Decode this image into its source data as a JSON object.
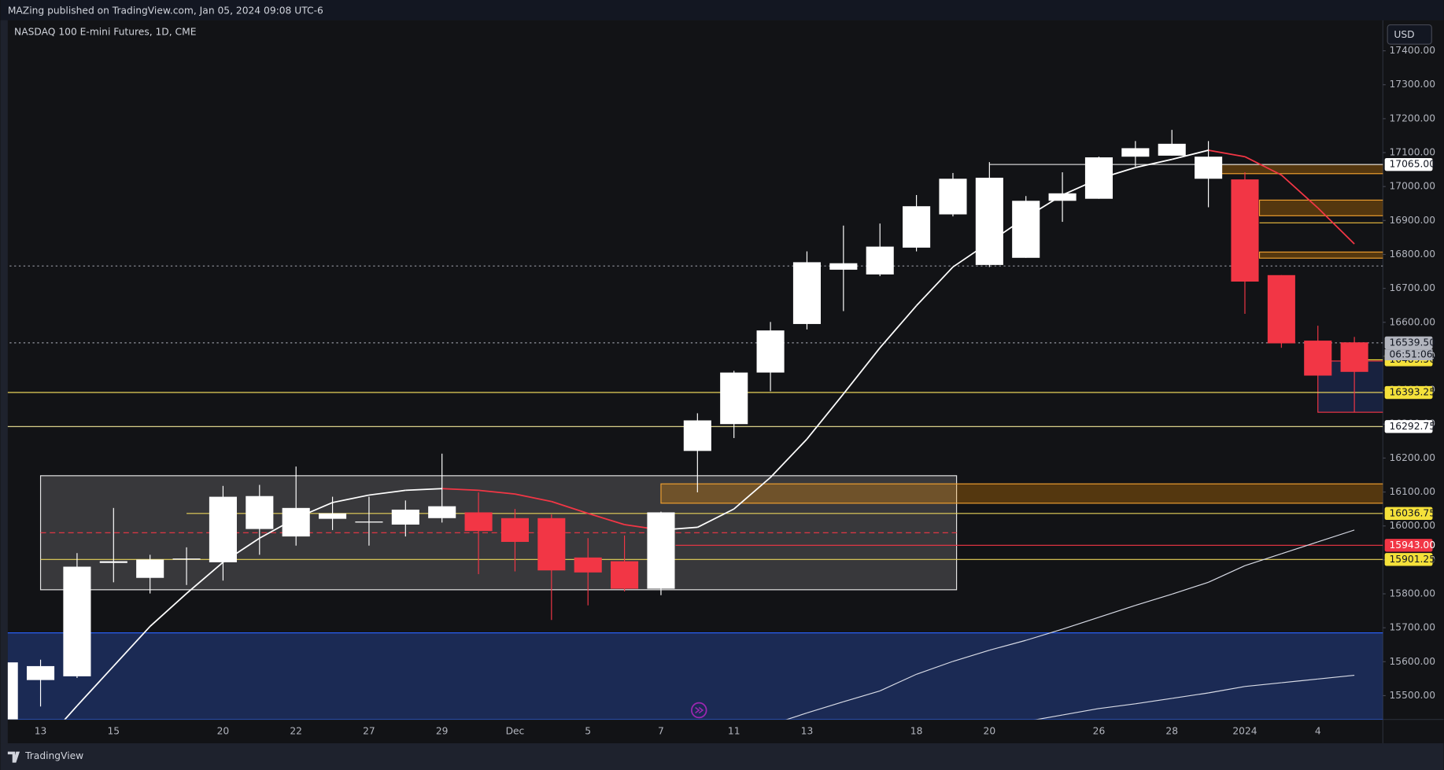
{
  "header": {
    "publisher": "MAZing published on TradingView.com, Jan 05, 2024 09:08 UTC-6",
    "symbol": "NASDAQ 100 E-mini Futures, 1D, CME"
  },
  "footer": {
    "brand": "TradingView"
  },
  "chart_data": {
    "type": "candlestick",
    "currency": "USD",
    "categories": [
      null,
      "13",
      null,
      "15",
      null,
      null,
      "20",
      null,
      "22",
      null,
      "27",
      null,
      "29",
      null,
      "Dec",
      null,
      "5",
      null,
      "7",
      null,
      "11",
      null,
      "13",
      null,
      null,
      "18",
      null,
      "20",
      null,
      null,
      "26",
      null,
      "28",
      null,
      "2024",
      null,
      "4",
      null
    ],
    "open": [
      15350,
      15546,
      15557,
      15891,
      15847,
      15901,
      15893,
      15991,
      15969,
      16021,
      16010,
      16004,
      16023,
      16040,
      16023,
      16023,
      15907,
      15896,
      15815,
      16221,
      16300,
      16452,
      16595,
      16755,
      16741,
      16820,
      16918,
      16769,
      16790,
      16958,
      16964,
      17088,
      17091,
      17023,
      17021,
      16739,
      16546,
      16541
    ],
    "high": [
      15600,
      15606,
      15920,
      16053,
      15915,
      15937,
      16118,
      16121,
      16175,
      16086,
      16086,
      16075,
      16213,
      16099,
      16050,
      16034,
      15964,
      15972,
      16042,
      16332,
      16457,
      16601,
      16809,
      16885,
      16891,
      16975,
      17040,
      17072,
      16972,
      17042,
      17088,
      17134,
      17167,
      17134,
      17042,
      16739,
      16590,
      16557
    ],
    "low": [
      15330,
      15468,
      15552,
      15834,
      15801,
      15826,
      15839,
      15915,
      15942,
      15988,
      15942,
      15969,
      16010,
      15858,
      15866,
      15723,
      15766,
      15807,
      15796,
      16099,
      16259,
      16397,
      16579,
      16633,
      16736,
      16809,
      16912,
      16763,
      16790,
      16896,
      16964,
      17059,
      17091,
      16939,
      16625,
      16525,
      16443,
      16335
    ],
    "close": [
      15598,
      15587,
      15880,
      15896,
      15901,
      15904,
      16086,
      16088,
      16053,
      16037,
      16013,
      16048,
      16058,
      15985,
      15953,
      15869,
      15863,
      15815,
      16040,
      16311,
      16452,
      16576,
      16777,
      16774,
      16823,
      16942,
      17023,
      17026,
      16958,
      16980,
      17086,
      17113,
      17126,
      17088,
      16720,
      16538,
      16443,
      16454
    ],
    "up_color": "#ffffff",
    "down_color": "#f23645",
    "ylim": [
      15430,
      17490
    ],
    "yticks": [
      {
        "value": 15500,
        "label": "15500.00"
      },
      {
        "value": 15600,
        "label": "15600.00"
      },
      {
        "value": 15700,
        "label": "15700.00"
      },
      {
        "value": 15800,
        "label": "15800.00"
      },
      {
        "value": 15900,
        "label": "15900.00"
      },
      {
        "value": 16000,
        "label": "16000.00"
      },
      {
        "value": 16100,
        "label": "16100.00"
      },
      {
        "value": 16200,
        "label": "16200.00"
      },
      {
        "value": 16300,
        "label": "16300.00"
      },
      {
        "value": 16400,
        "label": "16400.00"
      },
      {
        "value": 16500,
        "label": "16500.00"
      },
      {
        "value": 16600,
        "label": "16600.00"
      },
      {
        "value": 16700,
        "label": "16700.00"
      },
      {
        "value": 16800,
        "label": "16800.00"
      },
      {
        "value": 16900,
        "label": "16900.00"
      },
      {
        "value": 17000,
        "label": "17000.00"
      },
      {
        "value": 17100,
        "label": "17100.00"
      },
      {
        "value": 17200,
        "label": "17200.00"
      },
      {
        "value": 17300,
        "label": "17300.00"
      },
      {
        "value": 17400,
        "label": "17400.00"
      }
    ],
    "lines": [
      {
        "color": "#ffffff",
        "falling_color": "#f23645",
        "values": [
          null,
          15350,
          15470,
          15587,
          15704,
          15801,
          15893,
          15964,
          16023,
          16069,
          16091,
          16105,
          16110,
          16105,
          16094,
          16072,
          16037,
          16004,
          15988,
          15996,
          16050,
          16143,
          16256,
          16389,
          16525,
          16649,
          16763,
          16836,
          16909,
          16975,
          17023,
          17056,
          17080,
          17107,
          17088,
          17034,
          16937,
          16831
        ]
      },
      {
        "color": "#d8dbe6",
        "values": [
          null,
          null,
          null,
          null,
          null,
          null,
          null,
          null,
          null,
          null,
          null,
          null,
          null,
          null,
          null,
          null,
          null,
          null,
          null,
          null,
          null,
          15414,
          15449,
          15482,
          15514,
          15563,
          15601,
          15634,
          15663,
          15696,
          15731,
          15766,
          15799,
          15834,
          15883,
          15918,
          15953,
          15988
        ]
      },
      {
        "color": "#d8dbe6",
        "values": [
          null,
          null,
          null,
          null,
          null,
          null,
          null,
          null,
          null,
          null,
          null,
          null,
          null,
          null,
          null,
          null,
          null,
          null,
          null,
          null,
          null,
          null,
          null,
          null,
          null,
          null,
          null,
          null,
          15424,
          15443,
          15462,
          15476,
          15492,
          15508,
          15527,
          15538,
          15549,
          15560
        ]
      }
    ],
    "zones": [
      {
        "start": -0.1,
        "end": 37.8,
        "top": 15685,
        "bottom": 15430,
        "fill": "rgba(41,70,160,0.45)",
        "stroke": "#2962ff"
      },
      {
        "start": 1,
        "end": 26.1,
        "top": 16148,
        "bottom": 15812,
        "fill": "rgba(255,255,255,0.16)",
        "stroke": "#e6e6e6"
      },
      {
        "start": 18,
        "end": 37.8,
        "top": 16124,
        "bottom": 16067,
        "fill": "rgba(255,152,0,0.28)",
        "stroke": "#f0a030"
      },
      {
        "start": 34.4,
        "end": 37.8,
        "top": 16960,
        "bottom": 16914,
        "fill": "rgba(255,152,0,0.28)",
        "stroke": "#f0a030"
      },
      {
        "start": 33.2,
        "end": 37.8,
        "top": 17065,
        "bottom": 17038,
        "fill": "rgba(255,152,0,0.28)",
        "stroke": "#f0a030"
      },
      {
        "start": 34.4,
        "end": 37.8,
        "top": 16807,
        "bottom": 16789,
        "fill": "rgba(255,152,0,0.28)",
        "stroke": "#f0a030"
      },
      {
        "start": 36,
        "end": 37.8,
        "top": 16486,
        "bottom": 16335,
        "fill": "rgba(41,70,160,0.3)",
        "stroke": "#f23645"
      }
    ],
    "rules": [
      {
        "value": 16766,
        "color": "#9598a1",
        "dash": "2 3",
        "start": -0.1,
        "end": 37.8
      },
      {
        "value": 15980,
        "color": "#f23645",
        "dash": "6 4",
        "start": 1,
        "end": 26.1
      },
      {
        "value": 16893,
        "color": "#f0c040",
        "start": 34.4,
        "end": 37.8
      }
    ],
    "levels": [
      {
        "value": 17065,
        "label": "17065.00",
        "bg": "#ffffff",
        "fg": "#131722",
        "line": "#d0d0d0",
        "start": 27
      },
      {
        "value": 16489.5,
        "label": "16489.50",
        "bg": "#f5e13a",
        "fg": "#131722",
        "line": "#f5e13a",
        "start": 37
      },
      {
        "value": 16393.25,
        "label": "16393.25",
        "bg": "#f5e13a",
        "fg": "#131722",
        "line": "#e8d35a",
        "start": -0.1
      },
      {
        "value": 16292.75,
        "label": "16292.75",
        "bg": "#ffffff",
        "fg": "#131722",
        "line": "#d8cf8a",
        "start": -0.1
      },
      {
        "value": 16036.75,
        "label": "16036.75",
        "bg": "#f5e13a",
        "fg": "#131722",
        "line": "#e8d35a",
        "start": 5
      },
      {
        "value": 15943,
        "label": "15943.00",
        "bg": "#f23645",
        "fg": "#ffffff",
        "line": "#f23645",
        "start": 18.4
      },
      {
        "value": 15901.25,
        "label": "15901.25",
        "bg": "#f5e13a",
        "fg": "#131722",
        "line": "#e8d35a",
        "start": 1
      },
      {
        "value": 16539.5,
        "label": "16539.50",
        "bg": "#b2b5be",
        "fg": "#131722",
        "line": "#9598a1",
        "dash": "2 3",
        "start": -0.1
      }
    ],
    "countdown": "06:51:06"
  }
}
